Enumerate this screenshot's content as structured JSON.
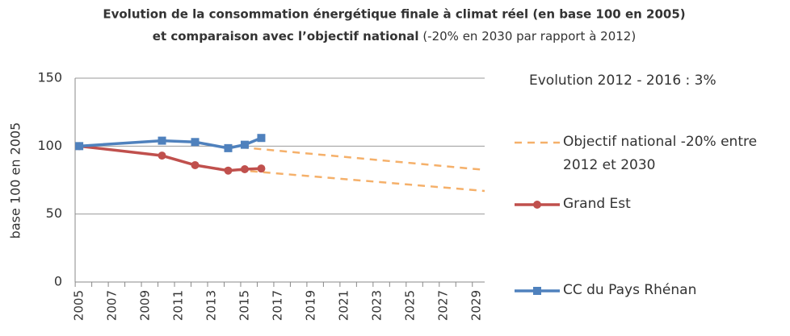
{
  "chart_data": {
    "type": "line",
    "title": [
      "Evolution de la consommation énergétique finale à climat réel (en base 100 en 2005)",
      "et comparaison avec l’objectif national",
      "(-20% en 2030 par rapport à 2012)"
    ],
    "annotation": "Evolution 2012 - 2016  : 3%",
    "y_label": "base 100 en 2005",
    "xlim": [
      2004.75,
      2029.5
    ],
    "xticks": [
      2005,
      2006,
      2007,
      2008,
      2009,
      2010,
      2011,
      2012,
      2013,
      2014,
      2015,
      2016,
      2017,
      2018,
      2019,
      2020,
      2021,
      2022,
      2023,
      2024,
      2025,
      2026,
      2027,
      2028,
      2029
    ],
    "xtick_labels": [
      "2005",
      null,
      "2007",
      null,
      "2009",
      null,
      "2011",
      null,
      "2013",
      null,
      "2015",
      null,
      "2017",
      null,
      "2019",
      null,
      "2021",
      null,
      "2023",
      null,
      "2025",
      null,
      "2027",
      null,
      "2029"
    ],
    "ylim": [
      0,
      150
    ],
    "yticks": [
      0,
      50,
      100,
      150
    ],
    "grid": true,
    "series": [
      {
        "name": "Objectif national -20% entre 2012 et 2030",
        "color": "#f5b06a",
        "dashed": true,
        "x": [
          2014,
          2029.5
        ],
        "values": [
          100,
          82.5
        ]
      },
      {
        "color": "#f5b06a",
        "dashed": true,
        "x": [
          2013,
          2029.5
        ],
        "values": [
          84,
          67
        ]
      },
      {
        "name": "Grand Est",
        "color": "#c0504d",
        "marker": "circle",
        "x": [
          2005,
          2010,
          2012,
          2014,
          2015,
          2016
        ],
        "values": [
          100,
          93,
          86,
          82,
          83,
          83.5
        ]
      },
      {
        "name": "CC du Pays Rhénan",
        "color": "#4f81bd",
        "marker": "square",
        "x": [
          2005,
          2010,
          2012,
          2014,
          2015,
          2016
        ],
        "values": [
          100,
          104,
          103,
          98.5,
          101,
          106
        ]
      }
    ]
  }
}
